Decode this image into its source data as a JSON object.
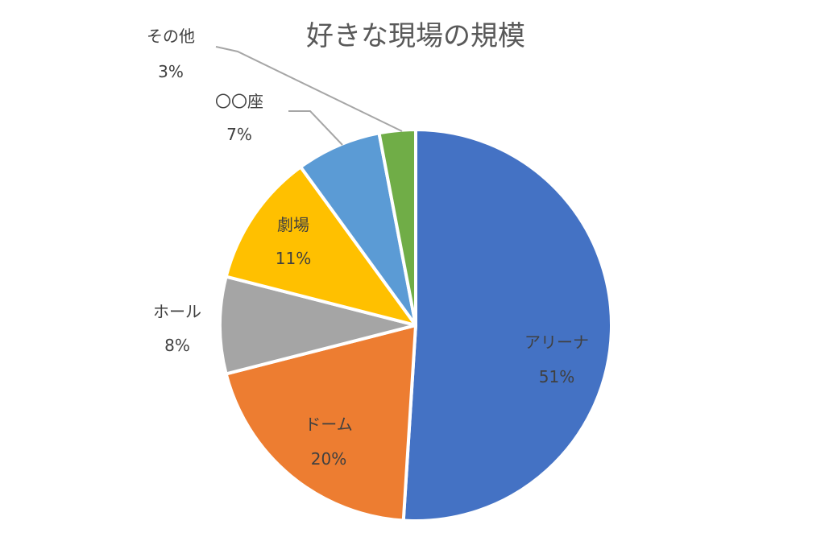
{
  "chart_data": {
    "type": "pie",
    "title": "好きな現場の規模",
    "categories": [
      "アリーナ",
      "ドーム",
      "ホール",
      "劇場",
      "〇〇座",
      "その他"
    ],
    "values": [
      51,
      20,
      8,
      11,
      7,
      3
    ],
    "value_labels": [
      "51%",
      "20%",
      "8%",
      "11%",
      "7%",
      "3%"
    ],
    "colors": [
      "#4472c4",
      "#ed7d31",
      "#a5a5a5",
      "#ffc000",
      "#5b9bd5",
      "#70ad47"
    ],
    "start_angle": "12 o'clock",
    "direction": "clockwise",
    "legend": "none"
  }
}
